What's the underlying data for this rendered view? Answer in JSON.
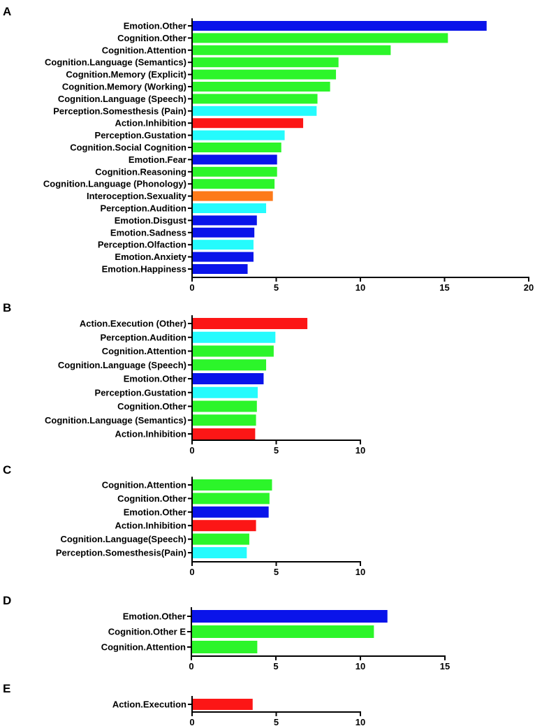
{
  "colors": {
    "Emotion": "#0a14ea",
    "Cognition": "#2cf52a",
    "Perception": "#25fbfd",
    "Action": "#fc1616",
    "Interoception": "#fd7a1a"
  },
  "chart_data": [
    {
      "type": "bar",
      "orientation": "horizontal",
      "panel": "A",
      "categories": [
        "Emotion.Other",
        "Cognition.Other",
        "Cognition.Attention",
        "Cognition.Language (Semantics)",
        "Cognition.Memory (Explicit)",
        "Cognition.Memory (Working)",
        "Cognition.Language (Speech)",
        "Perception.Somesthesis (Pain)",
        "Action.Inhibition",
        "Perception.Gustation",
        "Cognition.Social Cognition",
        "Emotion.Fear",
        "Cognition.Reasoning",
        "Cognition.Language (Phonology)",
        "Interoception.Sexuality",
        "Perception.Audition",
        "Emotion.Disgust",
        "Emotion.Sadness",
        "Perception.Olfaction",
        "Emotion.Anxiety",
        "Emotion.Happiness"
      ],
      "values": [
        17.5,
        15.2,
        11.8,
        8.7,
        8.55,
        8.2,
        7.45,
        7.4,
        6.6,
        5.5,
        5.3,
        5.05,
        5.05,
        4.9,
        4.8,
        4.4,
        3.85,
        3.7,
        3.65,
        3.65,
        3.3
      ],
      "groups": [
        "Emotion",
        "Cognition",
        "Cognition",
        "Cognition",
        "Cognition",
        "Cognition",
        "Cognition",
        "Perception",
        "Action",
        "Perception",
        "Cognition",
        "Emotion",
        "Cognition",
        "Cognition",
        "Interoception",
        "Perception",
        "Emotion",
        "Emotion",
        "Perception",
        "Emotion",
        "Emotion"
      ],
      "xlim": [
        0,
        20
      ],
      "xticks": [
        0,
        5,
        10,
        15,
        20
      ],
      "tick_labels": [
        "0",
        "5",
        "10",
        "15",
        "20"
      ]
    },
    {
      "type": "bar",
      "orientation": "horizontal",
      "panel": "B",
      "categories": [
        "Action.Execution (Other)",
        "Perception.Audition",
        "Cognition.Attention",
        "Cognition.Language (Speech)",
        "Emotion.Other",
        "Perception.Gustation",
        "Cognition.Other",
        "Cognition.Language (Semantics)",
        "Action.Inhibition"
      ],
      "values": [
        6.85,
        4.95,
        4.85,
        4.4,
        4.25,
        3.9,
        3.85,
        3.8,
        3.75
      ],
      "groups": [
        "Action",
        "Perception",
        "Cognition",
        "Cognition",
        "Emotion",
        "Perception",
        "Cognition",
        "Cognition",
        "Action"
      ],
      "xlim": [
        0,
        10
      ],
      "xticks": [
        0,
        5,
        10
      ],
      "tick_labels": [
        "0",
        "5",
        "10"
      ]
    },
    {
      "type": "bar",
      "orientation": "horizontal",
      "panel": "C",
      "categories": [
        "Cognition.Attention",
        "Cognition.Other",
        "Emotion.Other",
        "Action.Inhibition",
        "Cognition.Language(Speech)",
        "Perception.Somesthesis(Pain)"
      ],
      "values": [
        4.75,
        4.6,
        4.55,
        3.8,
        3.4,
        3.25
      ],
      "groups": [
        "Cognition",
        "Cognition",
        "Emotion",
        "Action",
        "Cognition",
        "Perception"
      ],
      "xlim": [
        0,
        10
      ],
      "xticks": [
        0,
        5,
        10
      ],
      "tick_labels": [
        "0",
        "5",
        "10"
      ]
    },
    {
      "type": "bar",
      "orientation": "horizontal",
      "panel": "D",
      "categories": [
        "Emotion.Other",
        "Cognition.Other E",
        "Cognition.Attention"
      ],
      "values": [
        11.6,
        10.8,
        3.9
      ],
      "groups": [
        "Emotion",
        "Cognition",
        "Cognition"
      ],
      "xlim": [
        0,
        15
      ],
      "xticks": [
        0,
        5,
        10,
        15
      ],
      "tick_labels": [
        "0",
        "5",
        "10",
        "15"
      ]
    },
    {
      "type": "bar",
      "orientation": "horizontal",
      "panel": "E",
      "categories": [
        "Action.Execution"
      ],
      "values": [
        3.6
      ],
      "groups": [
        "Action"
      ],
      "xlim": [
        0,
        10
      ],
      "xticks": [
        0,
        5,
        10
      ],
      "tick_labels": [
        "0",
        "5",
        "10"
      ]
    }
  ]
}
